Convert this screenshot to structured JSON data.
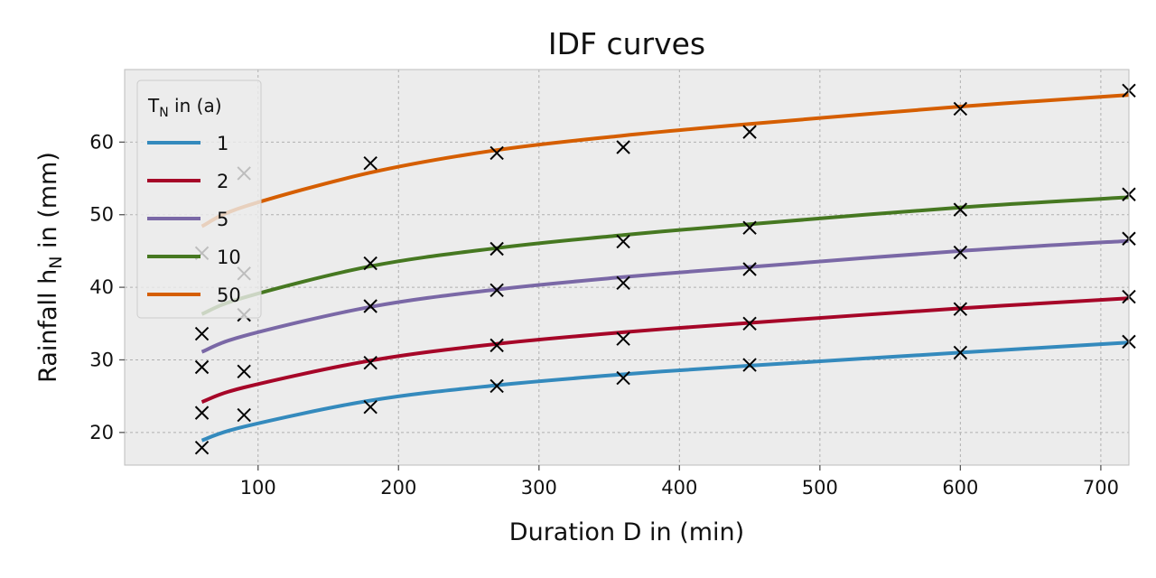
{
  "chart_data": {
    "type": "line",
    "title": "IDF curves",
    "xlabel": "Duration D in (min)",
    "ylabel": {
      "main": "Rainfall h",
      "sub": "N",
      "unit": " in (mm)"
    },
    "xlim": [
      5,
      720
    ],
    "ylim": [
      15.5,
      70
    ],
    "xticks": [
      100,
      200,
      300,
      400,
      500,
      600,
      700
    ],
    "yticks": [
      20,
      30,
      40,
      50,
      60
    ],
    "grid": true,
    "legend": {
      "placement": "upper-left",
      "title": {
        "main": "T",
        "sub": "N",
        "unit": " in (a)"
      }
    },
    "colors": {
      "background": "#ececec",
      "grid": "#b0b0b0",
      "frame": "#bdbdbd",
      "marker": "#000000"
    },
    "series": [
      {
        "name": "1",
        "color": "#348abd",
        "curve_x": [
          60,
          90,
          180,
          270,
          360,
          450,
          600,
          720
        ],
        "curve_y": [
          18.9,
          20.8,
          24.4,
          26.5,
          28.0,
          29.2,
          31.0,
          32.4
        ],
        "observed_x": [
          60,
          90,
          180,
          270,
          360,
          450,
          600,
          720
        ],
        "observed_y": [
          17.9,
          22.4,
          23.5,
          26.4,
          27.5,
          29.3,
          31.0,
          32.5
        ]
      },
      {
        "name": "2",
        "color": "#a60628",
        "curve_x": [
          60,
          90,
          180,
          270,
          360,
          450,
          600,
          720
        ],
        "curve_y": [
          24.2,
          26.2,
          29.9,
          32.2,
          33.8,
          35.1,
          37.1,
          38.5
        ],
        "observed_x": [
          60,
          90,
          180,
          270,
          360,
          450,
          600,
          720
        ],
        "observed_y": [
          22.7,
          28.4,
          29.6,
          32.0,
          32.9,
          35.0,
          37.0,
          38.7
        ]
      },
      {
        "name": "5",
        "color": "#7a68a6",
        "curve_x": [
          60,
          90,
          180,
          270,
          360,
          450,
          600,
          720
        ],
        "curve_y": [
          31.1,
          33.3,
          37.3,
          39.7,
          41.4,
          42.8,
          45.0,
          46.4
        ],
        "observed_x": [
          60,
          90,
          180,
          270,
          360,
          450,
          600,
          720
        ],
        "observed_y": [
          29.0,
          36.2,
          37.4,
          39.6,
          40.6,
          42.5,
          44.8,
          46.7
        ]
      },
      {
        "name": "10",
        "color": "#467821",
        "curve_x": [
          60,
          90,
          180,
          270,
          360,
          450,
          600,
          720
        ],
        "curve_y": [
          36.3,
          38.6,
          42.9,
          45.4,
          47.2,
          48.7,
          51.0,
          52.4
        ],
        "observed_x": [
          60,
          90,
          180,
          270,
          360,
          450,
          600,
          720
        ],
        "observed_y": [
          33.6,
          41.9,
          43.3,
          45.3,
          46.3,
          48.2,
          50.7,
          52.8
        ]
      },
      {
        "name": "50",
        "color": "#d55e00",
        "curve_x": [
          60,
          90,
          180,
          270,
          360,
          450,
          600,
          720
        ],
        "curve_y": [
          48.4,
          51.1,
          55.8,
          58.9,
          60.9,
          62.5,
          64.9,
          66.5
        ],
        "observed_x": [
          60,
          90,
          180,
          270,
          360,
          450,
          600,
          720
        ],
        "observed_y": [
          44.7,
          55.7,
          57.1,
          58.5,
          59.3,
          61.4,
          64.6,
          67.1
        ]
      }
    ]
  }
}
